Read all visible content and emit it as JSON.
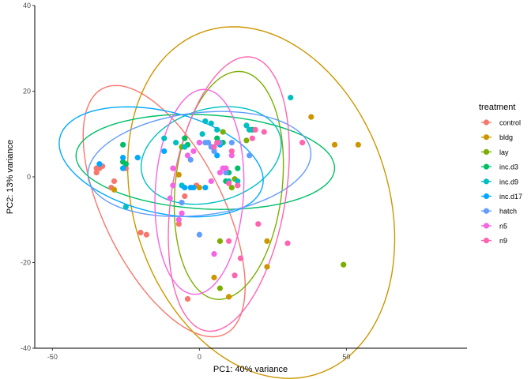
{
  "chart_data": {
    "type": "scatter",
    "title": "",
    "xlabel": "PC1: 40% variance",
    "ylabel": "PC2: 13% variance",
    "xlim": [
      -56,
      91
    ],
    "ylim": [
      -40,
      40
    ],
    "x_ticks": [
      -50,
      0,
      50
    ],
    "y_ticks": [
      -40,
      -20,
      0,
      20,
      40
    ],
    "grid": false,
    "legend_title": "treatment",
    "legend_position": "right",
    "series": [
      {
        "name": "control",
        "color": "#F8766D",
        "points": [
          [
            -35,
            2
          ],
          [
            -35,
            1
          ],
          [
            -34,
            2
          ],
          [
            -33,
            2.5
          ],
          [
            -30,
            -2.5
          ],
          [
            -29,
            -1
          ],
          [
            -25,
            2
          ],
          [
            -20,
            -13
          ],
          [
            -18,
            -13.5
          ],
          [
            -7,
            -11
          ],
          [
            -5,
            -4.5
          ],
          [
            -4,
            -28.5
          ],
          [
            -1,
            -2
          ]
        ],
        "ellipse": {
          "cx": -12,
          "cy": -8,
          "rx": 36,
          "ry": 18,
          "angle_deg": -48
        }
      },
      {
        "name": "bldg",
        "color": "#CD9600",
        "points": [
          [
            -29,
            -3
          ],
          [
            -7,
            0.5
          ],
          [
            -5,
            9
          ],
          [
            0,
            -2.5
          ],
          [
            5,
            -23.5
          ],
          [
            10,
            -28
          ],
          [
            23,
            -15
          ],
          [
            23,
            -21
          ],
          [
            38,
            14
          ],
          [
            46,
            7.5
          ],
          [
            54,
            7.5
          ]
        ],
        "ellipse": {
          "cx": 21,
          "cy": -6,
          "rx": 48,
          "ry": 38,
          "angle_deg": -32
        }
      },
      {
        "name": "lay",
        "color": "#7CAE00",
        "points": [
          [
            -26,
            3.5
          ],
          [
            -6,
            7
          ],
          [
            7,
            -15
          ],
          [
            7,
            -26
          ],
          [
            8,
            10.5
          ],
          [
            9,
            2
          ],
          [
            11,
            -2.5
          ],
          [
            12,
            -0.5
          ],
          [
            16,
            8.5
          ],
          [
            17,
            11
          ],
          [
            49,
            -20.5
          ]
        ],
        "ellipse": {
          "cx": 10,
          "cy": -2,
          "rx": 18,
          "ry": 27,
          "angle_deg": -13
        }
      },
      {
        "name": "inc.d3",
        "color": "#00BE67",
        "points": [
          [
            -26,
            7.5
          ],
          [
            -26,
            3.5
          ],
          [
            -25,
            3
          ],
          [
            -5,
            9
          ],
          [
            -4,
            7.5
          ],
          [
            6,
            9
          ],
          [
            8,
            8
          ],
          [
            9,
            -1
          ],
          [
            10,
            1
          ],
          [
            13,
            2
          ],
          [
            13,
            -2
          ],
          [
            18,
            11
          ]
        ],
        "ellipse": {
          "cx": 2,
          "cy": 3.5,
          "rx": 44,
          "ry": 11,
          "angle_deg": -2
        }
      },
      {
        "name": "inc.d9",
        "color": "#00BFC4",
        "points": [
          [
            -25,
            -7
          ],
          [
            -12,
            9
          ],
          [
            -8,
            8
          ],
          [
            -6,
            -2
          ],
          [
            -5,
            7
          ],
          [
            0,
            8
          ],
          [
            1,
            10
          ],
          [
            2,
            13
          ],
          [
            4,
            12.5
          ],
          [
            6,
            11
          ],
          [
            10,
            -1
          ],
          [
            13,
            -1
          ],
          [
            16,
            12
          ],
          [
            17,
            11
          ],
          [
            31,
            18.5
          ]
        ],
        "ellipse": {
          "cx": 4,
          "cy": 5,
          "rx": 24,
          "ry": 11,
          "angle_deg": 8
        }
      },
      {
        "name": "inc.d17",
        "color": "#00A9FF",
        "points": [
          [
            -34,
            3
          ],
          [
            -26,
            2
          ],
          [
            -26,
            4.5
          ],
          [
            -21,
            4.5
          ],
          [
            -12,
            6
          ],
          [
            -5,
            -2.5
          ],
          [
            -3,
            -2.5
          ],
          [
            -2,
            -2.5
          ],
          [
            2,
            -2.5
          ],
          [
            6,
            5
          ],
          [
            7,
            7.5
          ]
        ],
        "ellipse": {
          "cx": -13,
          "cy": 3.5,
          "rx": 35,
          "ry": 12,
          "angle_deg": -8
        }
      },
      {
        "name": "hatch",
        "color": "#619CFF",
        "points": [
          [
            -6,
            -6
          ],
          [
            -3,
            4
          ],
          [
            0,
            -13.5
          ],
          [
            2,
            8
          ],
          [
            3,
            8
          ],
          [
            4,
            7
          ],
          [
            5,
            6
          ],
          [
            7,
            8
          ],
          [
            9,
            1
          ],
          [
            11,
            8
          ],
          [
            17,
            5
          ]
        ],
        "ellipse": {
          "cx": 0,
          "cy": 3,
          "rx": 38,
          "ry": 12,
          "angle_deg": 4
        }
      },
      {
        "name": "n5",
        "color": "#F564E3",
        "points": [
          [
            -10,
            -5
          ],
          [
            -9,
            -2
          ],
          [
            -9,
            2
          ],
          [
            -7,
            -10
          ],
          [
            -6,
            -8.5
          ],
          [
            -4,
            5
          ],
          [
            -2,
            6
          ],
          [
            0,
            8
          ],
          [
            4,
            -1
          ],
          [
            5,
            -18
          ],
          [
            7,
            1
          ],
          [
            8,
            2
          ],
          [
            9,
            2
          ],
          [
            11,
            5
          ]
        ],
        "ellipse": {
          "cx": 0,
          "cy": -3.5,
          "rx": 15,
          "ry": 24,
          "angle_deg": -6
        }
      },
      {
        "name": "n9",
        "color": "#FF64B0",
        "points": [
          [
            5,
            7
          ],
          [
            6,
            8
          ],
          [
            10,
            -1.5
          ],
          [
            10,
            -15
          ],
          [
            11,
            6
          ],
          [
            12,
            -23
          ],
          [
            13,
            -2
          ],
          [
            14,
            -19
          ],
          [
            18,
            9
          ],
          [
            19,
            11
          ],
          [
            20,
            -11
          ],
          [
            22,
            10.5
          ],
          [
            30,
            -15.5
          ],
          [
            35,
            8
          ]
        ],
        "ellipse": {
          "cx": 10,
          "cy": -4,
          "rx": 19,
          "ry": 33,
          "angle_deg": -17
        }
      }
    ]
  }
}
